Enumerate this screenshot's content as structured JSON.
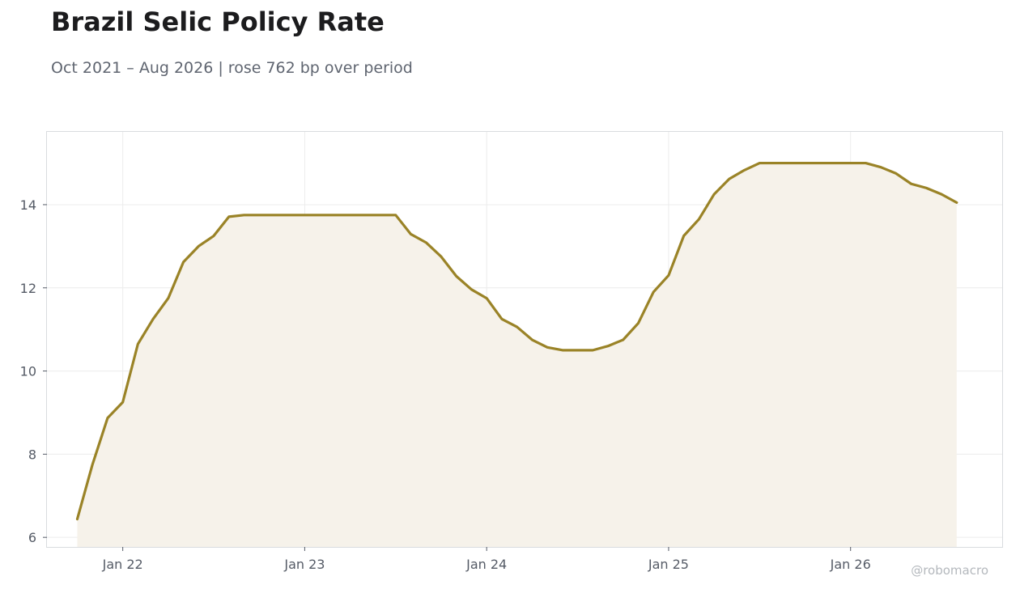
{
  "chart_data": {
    "type": "area",
    "title": "Brazil Selic Policy Rate",
    "subtitle": "Oct 2021 – Aug 2026 | rose 762 bp over period",
    "xlabel": "",
    "ylabel": "",
    "credit": "@robomacro",
    "x_start": "2021-10",
    "x_end": "2026-08",
    "ylim": [
      5.77,
      15.75
    ],
    "xlim": [
      "2021-08-01",
      "2026-11-01"
    ],
    "yticks": [
      6,
      8,
      10,
      12,
      14
    ],
    "xticks": [
      {
        "date": "2022-01",
        "label": "Jan 22"
      },
      {
        "date": "2023-01",
        "label": "Jan 23"
      },
      {
        "date": "2024-01",
        "label": "Jan 24"
      },
      {
        "date": "2025-01",
        "label": "Jan 25"
      },
      {
        "date": "2026-01",
        "label": "Jan 26"
      }
    ],
    "grid": true,
    "legend": "none",
    "line_color": "#9a8327",
    "fill_color": "#f6f2ea",
    "series": [
      {
        "points": [
          [
            "2021-10",
            6.44
          ],
          [
            "2021-11",
            7.75
          ],
          [
            "2021-12",
            8.87
          ],
          [
            "2022-01",
            9.25
          ],
          [
            "2022-02",
            10.65
          ],
          [
            "2022-03",
            11.25
          ],
          [
            "2022-04",
            11.75
          ],
          [
            "2022-05",
            12.62
          ],
          [
            "2022-06",
            13.0
          ],
          [
            "2022-07",
            13.25
          ],
          [
            "2022-08",
            13.71
          ],
          [
            "2022-09",
            13.75
          ],
          [
            "2022-10",
            13.75
          ],
          [
            "2022-11",
            13.75
          ],
          [
            "2022-12",
            13.75
          ],
          [
            "2023-01",
            13.75
          ],
          [
            "2023-02",
            13.75
          ],
          [
            "2023-03",
            13.75
          ],
          [
            "2023-04",
            13.75
          ],
          [
            "2023-05",
            13.75
          ],
          [
            "2023-06",
            13.75
          ],
          [
            "2023-07",
            13.75
          ],
          [
            "2023-08",
            13.29
          ],
          [
            "2023-09",
            13.09
          ],
          [
            "2023-10",
            12.75
          ],
          [
            "2023-11",
            12.28
          ],
          [
            "2023-12",
            11.96
          ],
          [
            "2024-01",
            11.75
          ],
          [
            "2024-02",
            11.25
          ],
          [
            "2024-03",
            11.06
          ],
          [
            "2024-04",
            10.75
          ],
          [
            "2024-05",
            10.57
          ],
          [
            "2024-06",
            10.5
          ],
          [
            "2024-07",
            10.5
          ],
          [
            "2024-08",
            10.5
          ],
          [
            "2024-09",
            10.6
          ],
          [
            "2024-10",
            10.75
          ],
          [
            "2024-11",
            11.15
          ],
          [
            "2024-12",
            11.9
          ],
          [
            "2025-01",
            12.3
          ],
          [
            "2025-02",
            13.25
          ],
          [
            "2025-03",
            13.65
          ],
          [
            "2025-04",
            14.25
          ],
          [
            "2025-05",
            14.62
          ],
          [
            "2025-06",
            14.83
          ],
          [
            "2025-07",
            15.0
          ],
          [
            "2025-08",
            15.0
          ],
          [
            "2025-09",
            15.0
          ],
          [
            "2025-10",
            15.0
          ],
          [
            "2025-11",
            15.0
          ],
          [
            "2025-12",
            15.0
          ],
          [
            "2026-01",
            15.0
          ],
          [
            "2026-02",
            15.0
          ],
          [
            "2026-03",
            14.9
          ],
          [
            "2026-04",
            14.75
          ],
          [
            "2026-05",
            14.5
          ],
          [
            "2026-06",
            14.4
          ],
          [
            "2026-07",
            14.25
          ],
          [
            "2026-08",
            14.05
          ]
        ]
      }
    ]
  }
}
